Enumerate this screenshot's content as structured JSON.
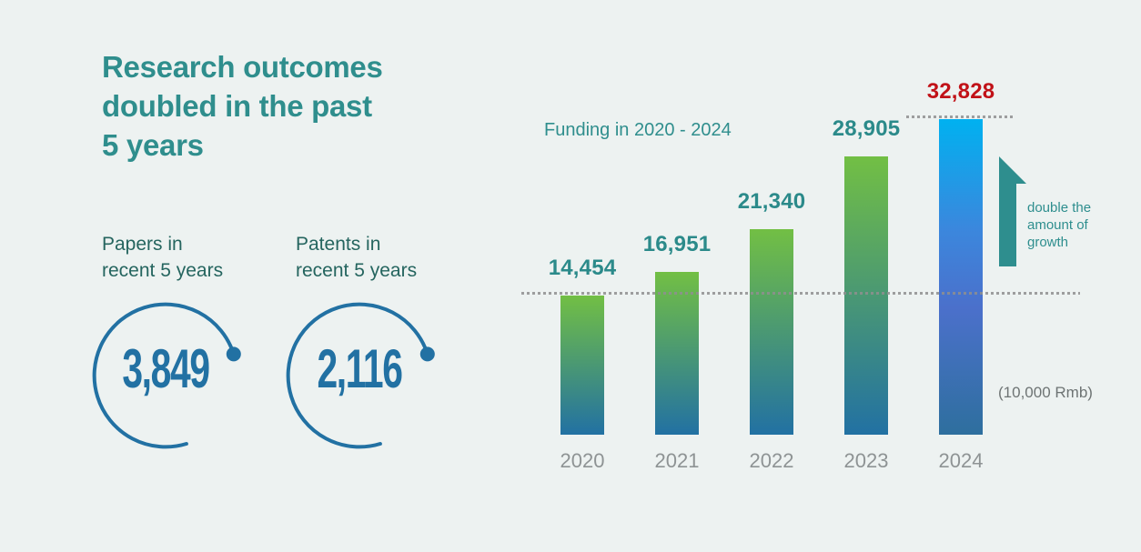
{
  "colors": {
    "background": "#edf2f1",
    "title_teal": "#2f8e8d",
    "stat_label_teal": "#25655f",
    "stat_value_blue": "#2271a3",
    "accent_teal": "#2e8e8e",
    "unit_gray": "#6e7474",
    "dotted_line_gray": "#8f8f8f"
  },
  "header": {
    "title_lines": [
      "Research outcomes",
      "doubled in the past",
      "5 years"
    ]
  },
  "stats": [
    {
      "label_lines": [
        "Papers in",
        "recent 5 years"
      ],
      "value": "3,849"
    },
    {
      "label_lines": [
        "Patents in",
        "recent 5 years"
      ],
      "value": "2,116"
    }
  ],
  "chart_data": {
    "type": "bar",
    "title": "Funding in 2020 - 2024",
    "categories": [
      "2020",
      "2021",
      "2022",
      "2023",
      "2024"
    ],
    "values": [
      14454,
      16951,
      21340,
      28905,
      32828
    ],
    "value_labels": [
      "14,454",
      "16,951",
      "21,340",
      "28,905",
      "32,828"
    ],
    "highlight_index": 4,
    "unit_label": "(10,000 Rmb)",
    "annotation_lines": [
      "double the",
      "amount of",
      "growth"
    ],
    "ylim": [
      0,
      35000
    ],
    "grid": "off",
    "legend": "none",
    "reference_lines": [
      "dotted line at 2020 level (14,454)",
      "dotted line at 2024 top (32,828)"
    ],
    "colors": {
      "bar_gradient_top": "#72bf44",
      "bar_gradient_bottom": "#2271a3",
      "highlight_top": "#00b1f0",
      "highlight_mid": "#4b70cb",
      "highlight_bottom": "#2e6f9e",
      "value_label": "#2b8a8a",
      "highlight_value_label": "#c11218",
      "category_label": "#8e9394"
    }
  }
}
